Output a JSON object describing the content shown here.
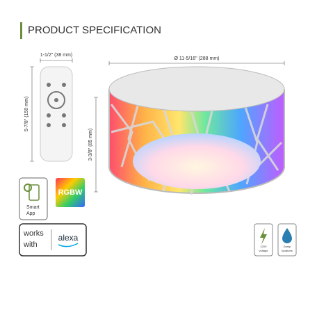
{
  "header": {
    "title": "PRODUCT SPECIFICATION"
  },
  "dimensions": {
    "remote_width": "1-1/2\" (38 mm)",
    "remote_height": "5-7/8\" (150 mm)",
    "diameter": "Ø 11-5/16\" (288 mm)",
    "height": "3-3/8\" (85 mm)"
  },
  "badges": {
    "smart_app": [
      "Smart",
      "App"
    ],
    "rgbw": "RGBW",
    "works_with": [
      "works",
      "with"
    ],
    "alexa": "alexa"
  },
  "features": [
    {
      "label": [
        "120V",
        "voltage"
      ]
    },
    {
      "label": [
        "Damp",
        "locations"
      ]
    }
  ]
}
